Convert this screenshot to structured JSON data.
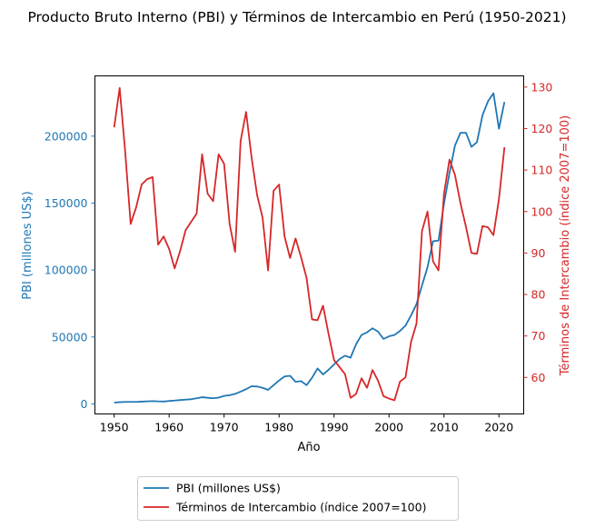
{
  "chart_data": {
    "type": "line",
    "title": "Producto Bruto Interno (PBI) y Términos de Intercambio en Perú (1950-2021)",
    "xlabel": "Año",
    "ylabel_left": "PBI (millones US$)",
    "ylabel_right": "Términos de Intercambio (índice 2007=100)",
    "x_ticks": [
      "1950",
      "1960",
      "1970",
      "1980",
      "1990",
      "2000",
      "2010",
      "2020"
    ],
    "y_left_ticks": [
      "0",
      "50000",
      "100000",
      "150000",
      "200000"
    ],
    "y_right_ticks": [
      "60",
      "70",
      "80",
      "90",
      "100",
      "110",
      "120",
      "130"
    ],
    "xlim": [
      1946.5,
      2024.5
    ],
    "ylim_left": [
      -7500,
      245000
    ],
    "ylim_right": [
      51.2,
      132.7
    ],
    "grid": false,
    "legend_position": "bottom-center, below plot",
    "x": [
      1950,
      1951,
      1952,
      1953,
      1954,
      1955,
      1956,
      1957,
      1958,
      1959,
      1960,
      1961,
      1962,
      1963,
      1964,
      1965,
      1966,
      1967,
      1968,
      1969,
      1970,
      1971,
      1972,
      1973,
      1974,
      1975,
      1976,
      1977,
      1978,
      1979,
      1980,
      1981,
      1982,
      1983,
      1984,
      1985,
      1986,
      1987,
      1988,
      1989,
      1990,
      1991,
      1992,
      1993,
      1994,
      1995,
      1996,
      1997,
      1998,
      1999,
      2000,
      2001,
      2002,
      2003,
      2004,
      2005,
      2006,
      2007,
      2008,
      2009,
      2010,
      2011,
      2012,
      2013,
      2014,
      2015,
      2016,
      2017,
      2018,
      2019,
      2020,
      2021
    ],
    "series": [
      {
        "name": "PBI (millones US$)",
        "axis": "left",
        "color": "#1f77b4",
        "values": [
          1000,
          1300,
          1500,
          1500,
          1500,
          1700,
          1900,
          2100,
          1900,
          1800,
          2200,
          2500,
          2900,
          3200,
          3500,
          4200,
          5000,
          4600,
          4200,
          4700,
          6000,
          6500,
          7500,
          9200,
          11000,
          13200,
          13000,
          12000,
          10500,
          14000,
          17500,
          20500,
          21000,
          16500,
          17000,
          14000,
          19500,
          26500,
          22000,
          25500,
          29500,
          33500,
          36000,
          34500,
          44500,
          51500,
          53500,
          56500,
          54000,
          48500,
          50500,
          51500,
          54500,
          58500,
          66000,
          74500,
          88500,
          102000,
          121500,
          122000,
          149500,
          172500,
          193000,
          202500,
          202500,
          192000,
          195500,
          215500,
          226000,
          232000,
          205500,
          225500
        ]
      },
      {
        "name": "Términos de Intercambio (índice 2007=100)",
        "axis": "right",
        "color": "#d62728",
        "values": [
          120.3,
          129.8,
          114.5,
          97.0,
          101.0,
          106.5,
          107.8,
          108.3,
          92.0,
          94.0,
          91.0,
          86.3,
          90.5,
          95.5,
          97.5,
          99.5,
          113.8,
          104.3,
          102.5,
          113.8,
          111.5,
          97.0,
          90.3,
          117.0,
          124.0,
          113.0,
          104.0,
          98.5,
          85.8,
          105.0,
          106.5,
          94.0,
          88.8,
          93.5,
          89.0,
          84.0,
          74.0,
          73.8,
          77.3,
          70.5,
          64.2,
          62.5,
          60.8,
          55.1,
          56.0,
          59.8,
          57.5,
          61.8,
          59.2,
          55.5,
          54.9,
          54.5,
          59.0,
          60.0,
          68.5,
          73.0,
          95.3,
          100.0,
          88.0,
          85.8,
          104.3,
          112.5,
          108.8,
          102.0,
          96.3,
          90.0,
          89.8,
          96.5,
          96.2,
          94.3,
          103.0,
          115.5
        ]
      }
    ]
  }
}
